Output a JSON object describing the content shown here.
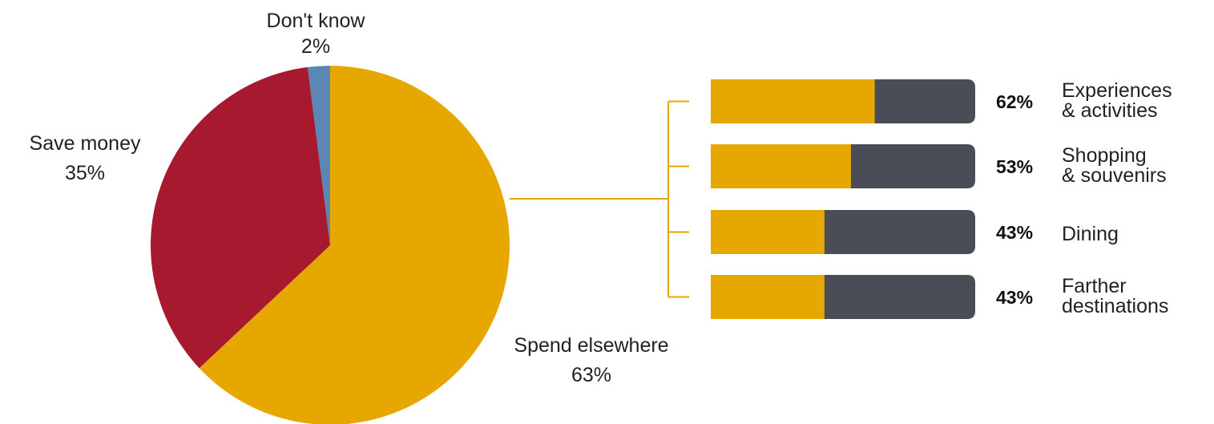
{
  "colors": {
    "spend": "#E6A800",
    "save": "#A6192E",
    "dont_know": "#5B87B5",
    "bar_remainder": "#4A4D55",
    "connector": "#E6A800"
  },
  "chart_data": [
    {
      "type": "pie",
      "slices": [
        {
          "label": "Spend elsewhere",
          "value": 63,
          "value_label": "63%",
          "color": "#E6A800"
        },
        {
          "label": "Save money",
          "value": 35,
          "value_label": "35%",
          "color": "#A6192E"
        },
        {
          "label": "Don't know",
          "value": 2,
          "value_label": "2%",
          "color": "#5B87B5"
        }
      ]
    },
    {
      "type": "bar",
      "orientation": "horizontal",
      "stacked_to": 100,
      "breakdown_of": "Spend elsewhere",
      "categories": [
        [
          "Experiences",
          "& activities"
        ],
        [
          "Shopping",
          "& souvenirs"
        ],
        [
          "Dining"
        ],
        [
          "Farther",
          "destinations"
        ]
      ],
      "values": [
        62,
        53,
        43,
        43
      ],
      "value_labels": [
        "62%",
        "53%",
        "43%",
        "43%"
      ],
      "bar_color": "#E6A800",
      "remainder_color": "#4A4D55"
    }
  ]
}
